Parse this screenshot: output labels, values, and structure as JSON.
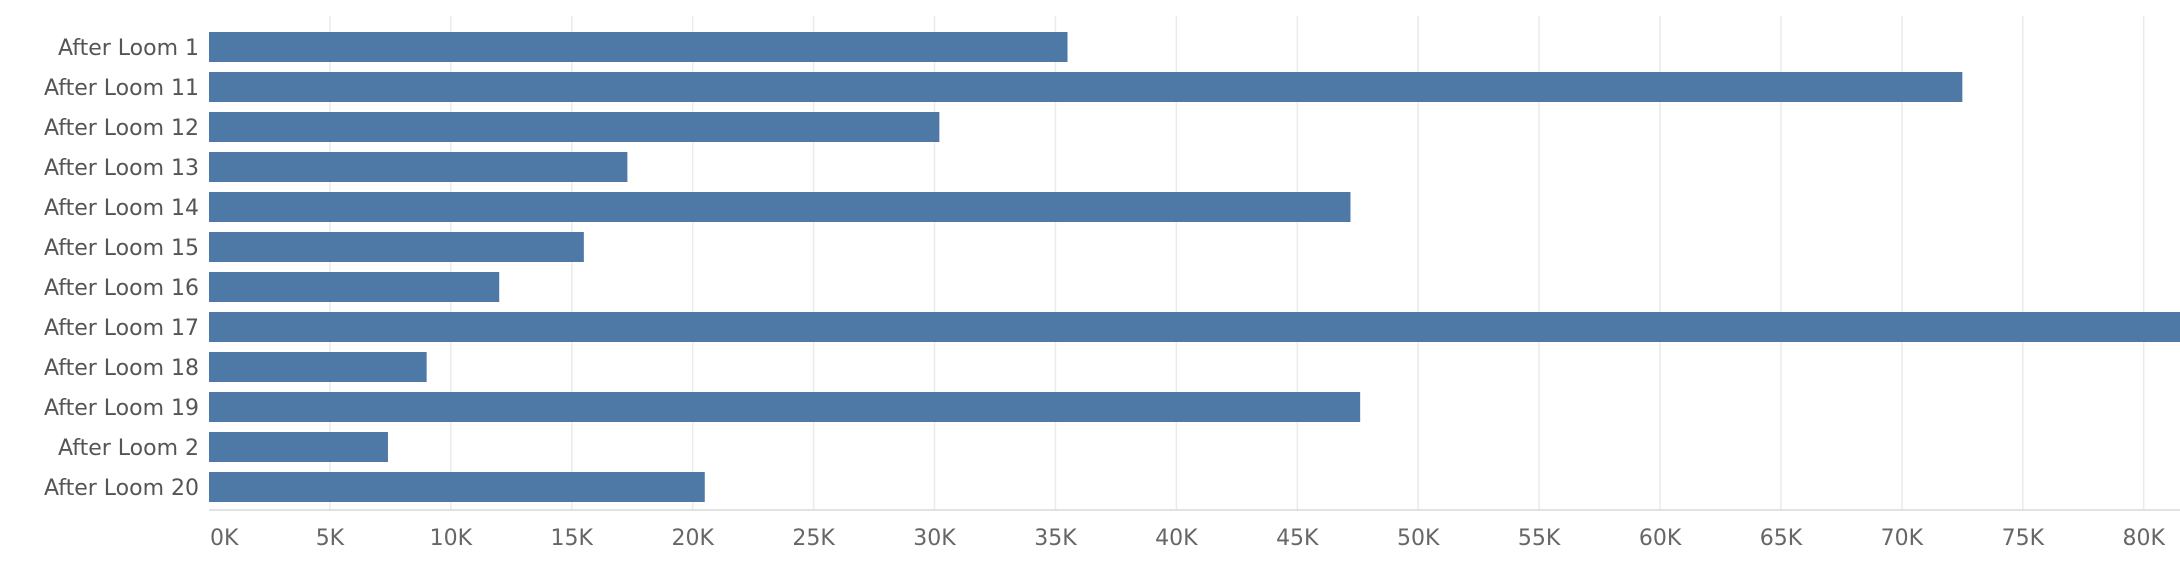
{
  "chart_data": {
    "type": "bar",
    "orientation": "horizontal",
    "categories": [
      "After Loom 1",
      "After Loom 11",
      "After Loom 12",
      "After Loom 13",
      "After Loom 14",
      "After Loom 15",
      "After Loom 16",
      "After Loom 17",
      "After Loom 18",
      "After Loom 19",
      "After Loom 2",
      "After Loom 20"
    ],
    "values": [
      35500,
      72500,
      30200,
      17300,
      47200,
      15500,
      12000,
      82000,
      9000,
      47600,
      7400,
      20500
    ],
    "xlim": [
      0,
      81500
    ],
    "x_ticks": [
      0,
      5000,
      10000,
      15000,
      20000,
      25000,
      30000,
      35000,
      40000,
      45000,
      50000,
      55000,
      60000,
      65000,
      70000,
      75000,
      80000
    ],
    "x_tick_labels": [
      "0K",
      "5K",
      "10K",
      "15K",
      "20K",
      "25K",
      "30K",
      "35K",
      "40K",
      "45K",
      "50K",
      "55K",
      "60K",
      "65K",
      "70K",
      "75K",
      "80K"
    ],
    "title": "",
    "xlabel": "",
    "ylabel": "",
    "grid": "vertical",
    "bar_color": "#4e79a7"
  }
}
